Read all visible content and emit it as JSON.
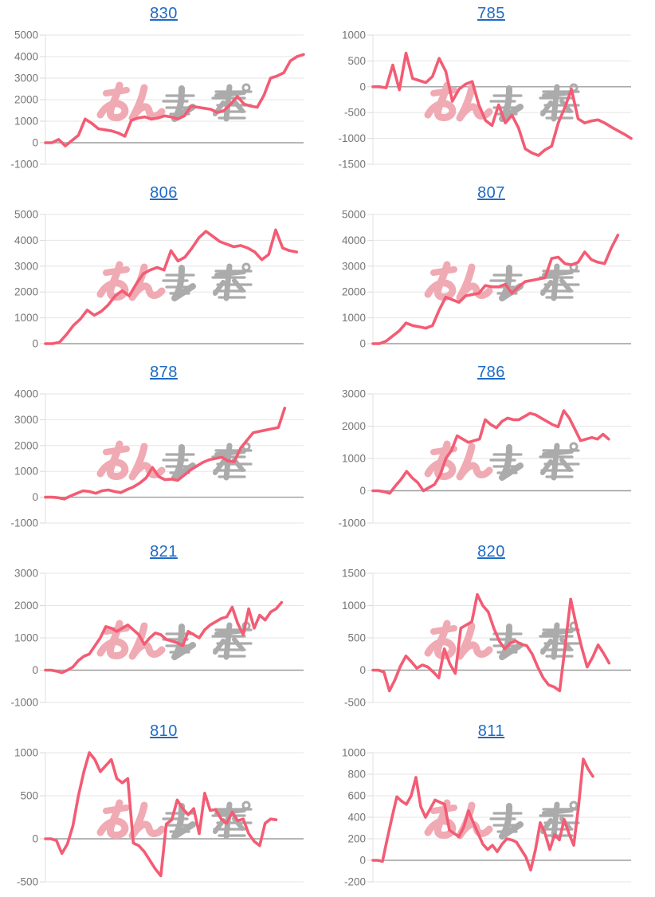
{
  "page": {
    "description": "Grid of 10 pachinko machine payout line charts, each titled with a machine number link",
    "background": "#ffffff"
  },
  "colors": {
    "line": "#f35c74",
    "title_link": "#1f6bc4",
    "axis_label": "#757575",
    "gridline": "#e6e6e6",
    "zero_line": "#9e9e9e",
    "tick_mark": "#d9d9d9",
    "axis_line": "#e0e0e0",
    "watermark_pink": "#f0aab3",
    "watermark_gray": "#ababab"
  },
  "watermark": {
    "name": "min-repo-logo",
    "pink_text": "みん",
    "gray_text": "レポ"
  },
  "chart_data": [
    {
      "type": "line",
      "title": "830",
      "ylim": [
        -1000,
        5000
      ],
      "yticks": [
        5000,
        4000,
        3000,
        2000,
        1000,
        0,
        -1000
      ],
      "x_slots": 40,
      "values": [
        0,
        0,
        150,
        -150,
        100,
        350,
        1100,
        900,
        650,
        600,
        550,
        450,
        300,
        1050,
        1150,
        1200,
        1100,
        1150,
        1250,
        1200,
        1100,
        1250,
        1700,
        1650,
        1600,
        1550,
        1400,
        1500,
        1800,
        2150,
        1800,
        1700,
        1650,
        2200,
        3000,
        3100,
        3250,
        3800,
        4000,
        4100
      ]
    },
    {
      "type": "line",
      "title": "785",
      "ylim": [
        -1500,
        1000
      ],
      "yticks": [
        1000,
        500,
        0,
        -500,
        -1000,
        -1500
      ],
      "x_slots": 40,
      "values": [
        0,
        0,
        -20,
        420,
        -60,
        650,
        160,
        120,
        80,
        200,
        550,
        300,
        -280,
        -50,
        50,
        100,
        -350,
        -650,
        -750,
        -350,
        -700,
        -550,
        -800,
        -1200,
        -1280,
        -1330,
        -1220,
        -1150,
        -700,
        -400,
        -50,
        -620,
        -700,
        -660,
        -640,
        -700,
        -780,
        -850,
        -920,
        -1000
      ]
    },
    {
      "type": "line",
      "title": "806",
      "ylim": [
        0,
        5000
      ],
      "yticks": [
        5000,
        4000,
        3000,
        2000,
        1000,
        0
      ],
      "x_slots": 38,
      "values": [
        0,
        0,
        50,
        350,
        700,
        950,
        1300,
        1100,
        1250,
        1500,
        1850,
        2050,
        1850,
        2300,
        2700,
        2850,
        2950,
        2850,
        3600,
        3200,
        3350,
        3700,
        4100,
        4350,
        4150,
        3950,
        3850,
        3750,
        3800,
        3700,
        3550,
        3250,
        3450,
        4400,
        3700,
        3600,
        3550
      ]
    },
    {
      "type": "line",
      "title": "807",
      "ylim": [
        0,
        5000
      ],
      "yticks": [
        5000,
        4000,
        3000,
        2000,
        1000,
        0
      ],
      "x_slots": 40,
      "values": [
        0,
        0,
        100,
        300,
        500,
        800,
        700,
        650,
        600,
        700,
        1300,
        1800,
        1700,
        1600,
        1850,
        1900,
        1950,
        2250,
        2200,
        2200,
        2300,
        1950,
        2200,
        2400,
        2450,
        2500,
        2550,
        3300,
        3350,
        3100,
        3050,
        3150,
        3550,
        3250,
        3150,
        3100,
        3700,
        4200
      ]
    },
    {
      "type": "line",
      "title": "878",
      "ylim": [
        -1000,
        4000
      ],
      "yticks": [
        4000,
        3000,
        2000,
        1000,
        0,
        -1000
      ],
      "x_slots": 42,
      "values": [
        0,
        0,
        -20,
        -70,
        50,
        150,
        250,
        220,
        150,
        250,
        280,
        220,
        180,
        300,
        400,
        550,
        750,
        1150,
        800,
        680,
        700,
        650,
        850,
        1050,
        1200,
        1350,
        1450,
        1500,
        1550,
        1400,
        1380,
        1900,
        2200,
        2500,
        2550,
        2600,
        2650,
        2700,
        3450
      ]
    },
    {
      "type": "line",
      "title": "786",
      "ylim": [
        -1000,
        3000
      ],
      "yticks": [
        3000,
        2000,
        1000,
        0,
        -1000
      ],
      "x_slots": 47,
      "values": [
        0,
        0,
        -30,
        -80,
        150,
        350,
        600,
        400,
        250,
        0,
        100,
        200,
        500,
        1000,
        1250,
        1700,
        1600,
        1500,
        1550,
        1600,
        2200,
        2050,
        1950,
        2150,
        2250,
        2200,
        2200,
        2300,
        2400,
        2350,
        2250,
        2150,
        2050,
        1980,
        2480,
        2250,
        1900,
        1550,
        1600,
        1650,
        1600,
        1750,
        1600
      ]
    },
    {
      "type": "line",
      "title": "821",
      "ylim": [
        -1000,
        3000
      ],
      "yticks": [
        3000,
        2000,
        1000,
        0,
        -1000
      ],
      "x_slots": 48,
      "values": [
        0,
        0,
        -30,
        -80,
        0,
        100,
        300,
        430,
        500,
        750,
        1000,
        1350,
        1300,
        1200,
        1300,
        1400,
        1250,
        1100,
        800,
        1000,
        1150,
        1100,
        950,
        900,
        850,
        750,
        1200,
        1100,
        1000,
        1250,
        1400,
        1500,
        1600,
        1650,
        1950,
        1450,
        1100,
        1900,
        1300,
        1700,
        1550,
        1800,
        1900,
        2100
      ]
    },
    {
      "type": "line",
      "title": "820",
      "ylim": [
        -500,
        1500
      ],
      "yticks": [
        1500,
        1000,
        500,
        0,
        -500
      ],
      "x_slots": 48,
      "values": [
        0,
        0,
        -30,
        -320,
        -150,
        60,
        220,
        130,
        30,
        80,
        50,
        -30,
        -120,
        330,
        100,
        -50,
        650,
        700,
        750,
        1170,
        1000,
        900,
        650,
        450,
        330,
        420,
        450,
        400,
        380,
        250,
        50,
        -120,
        -230,
        -260,
        -320,
        380,
        1100,
        700,
        350,
        50,
        200,
        390,
        260,
        110
      ]
    },
    {
      "type": "line",
      "title": "810",
      "ylim": [
        -500,
        1000
      ],
      "yticks": [
        1000,
        500,
        0,
        -500
      ],
      "x_slots": 48,
      "values": [
        0,
        0,
        -20,
        -170,
        -60,
        150,
        500,
        780,
        1000,
        920,
        780,
        850,
        920,
        700,
        650,
        700,
        -50,
        -80,
        -150,
        -250,
        -350,
        -430,
        170,
        220,
        450,
        350,
        280,
        350,
        60,
        530,
        330,
        340,
        230,
        180,
        310,
        210,
        230,
        60,
        -30,
        -80,
        180,
        230,
        220
      ]
    },
    {
      "type": "line",
      "title": "811",
      "ylim": [
        -200,
        1000
      ],
      "yticks": [
        1000,
        800,
        600,
        400,
        200,
        0,
        -200
      ],
      "x_slots": 55,
      "values": [
        0,
        0,
        -10,
        200,
        400,
        590,
        550,
        520,
        600,
        770,
        500,
        400,
        480,
        560,
        540,
        520,
        280,
        250,
        220,
        310,
        460,
        350,
        250,
        150,
        100,
        140,
        80,
        150,
        200,
        190,
        170,
        100,
        30,
        -90,
        100,
        350,
        250,
        100,
        240,
        190,
        380,
        250,
        140,
        500,
        940,
        850,
        780
      ]
    }
  ]
}
